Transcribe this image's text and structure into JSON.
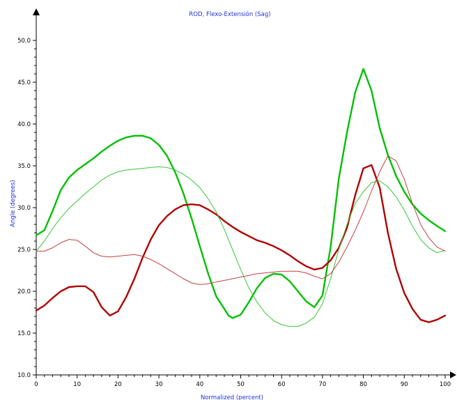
{
  "chart_data": {
    "type": "line",
    "title": "ROD, Flexo-Extensión (Sag)",
    "xlabel": "Normalized (percent)",
    "ylabel": "Angle (degrees)",
    "xlim": [
      0,
      100
    ],
    "ylim": [
      10,
      50
    ],
    "x_ticks": [
      "0",
      "10",
      "20",
      "30",
      "40",
      "50",
      "60",
      "70",
      "80",
      "90",
      "100"
    ],
    "y_ticks": [
      "10.0",
      "15.0",
      "20.0",
      "25.0",
      "30.0",
      "35.0",
      "40.0",
      "45.0",
      "50.0"
    ],
    "grid": false,
    "series": [
      {
        "color": "#00c000",
        "width": 2.4,
        "points": [
          [
            0,
            26.7
          ],
          [
            2,
            27.3
          ],
          [
            4,
            29.6
          ],
          [
            6,
            32.1
          ],
          [
            8,
            33.6
          ],
          [
            10,
            34.5
          ],
          [
            12,
            35.2
          ],
          [
            14,
            35.9
          ],
          [
            16,
            36.7
          ],
          [
            18,
            37.4
          ],
          [
            20,
            38.0
          ],
          [
            22,
            38.4
          ],
          [
            24,
            38.6
          ],
          [
            26,
            38.6
          ],
          [
            28,
            38.3
          ],
          [
            30,
            37.5
          ],
          [
            32,
            36.2
          ],
          [
            34,
            34.2
          ],
          [
            36,
            31.7
          ],
          [
            38,
            28.7
          ],
          [
            40,
            25.4
          ],
          [
            42,
            22.2
          ],
          [
            44,
            19.4
          ],
          [
            46,
            17.9
          ],
          [
            47,
            17.1
          ],
          [
            48,
            16.8
          ],
          [
            50,
            17.2
          ],
          [
            52,
            18.7
          ],
          [
            54,
            20.4
          ],
          [
            56,
            21.6
          ],
          [
            58,
            22.1
          ],
          [
            60,
            22.0
          ],
          [
            62,
            21.2
          ],
          [
            64,
            20.0
          ],
          [
            66,
            18.8
          ],
          [
            68,
            18.1
          ],
          [
            70,
            19.5
          ],
          [
            72,
            25.3
          ],
          [
            74,
            33.5
          ],
          [
            76,
            39.0
          ],
          [
            78,
            43.8
          ],
          [
            80,
            46.6
          ],
          [
            82,
            44.0
          ],
          [
            84,
            39.5
          ],
          [
            86,
            36.3
          ],
          [
            88,
            33.8
          ],
          [
            90,
            31.9
          ],
          [
            92,
            30.4
          ],
          [
            94,
            29.3
          ],
          [
            96,
            28.5
          ],
          [
            98,
            27.8
          ],
          [
            100,
            27.2
          ]
        ]
      },
      {
        "color": "#b00000",
        "width": 2.4,
        "points": [
          [
            0,
            17.7
          ],
          [
            2,
            18.3
          ],
          [
            4,
            19.2
          ],
          [
            6,
            20.0
          ],
          [
            8,
            20.5
          ],
          [
            10,
            20.6
          ],
          [
            12,
            20.6
          ],
          [
            14,
            19.9
          ],
          [
            16,
            18.1
          ],
          [
            18,
            17.1
          ],
          [
            20,
            17.6
          ],
          [
            22,
            19.3
          ],
          [
            24,
            21.5
          ],
          [
            26,
            24.0
          ],
          [
            28,
            26.2
          ],
          [
            30,
            27.9
          ],
          [
            32,
            29.0
          ],
          [
            34,
            29.8
          ],
          [
            36,
            30.3
          ],
          [
            38,
            30.4
          ],
          [
            40,
            30.3
          ],
          [
            42,
            29.8
          ],
          [
            44,
            29.2
          ],
          [
            46,
            28.4
          ],
          [
            48,
            27.7
          ],
          [
            50,
            27.1
          ],
          [
            52,
            26.6
          ],
          [
            54,
            26.1
          ],
          [
            56,
            25.8
          ],
          [
            58,
            25.4
          ],
          [
            60,
            24.9
          ],
          [
            62,
            24.3
          ],
          [
            64,
            23.6
          ],
          [
            66,
            23.0
          ],
          [
            68,
            22.6
          ],
          [
            70,
            22.8
          ],
          [
            72,
            23.7
          ],
          [
            74,
            25.2
          ],
          [
            76,
            27.6
          ],
          [
            78,
            31.5
          ],
          [
            80,
            34.7
          ],
          [
            82,
            35.1
          ],
          [
            84,
            32.4
          ],
          [
            86,
            27.0
          ],
          [
            88,
            22.7
          ],
          [
            90,
            19.8
          ],
          [
            92,
            17.9
          ],
          [
            94,
            16.6
          ],
          [
            96,
            16.3
          ],
          [
            98,
            16.6
          ],
          [
            100,
            17.1
          ]
        ]
      },
      {
        "color": "#35c935",
        "width": 1.0,
        "points": [
          [
            0,
            24.8
          ],
          [
            2,
            26.0
          ],
          [
            4,
            27.5
          ],
          [
            6,
            28.8
          ],
          [
            8,
            29.9
          ],
          [
            10,
            30.8
          ],
          [
            12,
            31.7
          ],
          [
            14,
            32.5
          ],
          [
            16,
            33.3
          ],
          [
            18,
            33.9
          ],
          [
            20,
            34.3
          ],
          [
            22,
            34.5
          ],
          [
            24,
            34.6
          ],
          [
            26,
            34.7
          ],
          [
            28,
            34.8
          ],
          [
            30,
            34.9
          ],
          [
            32,
            34.8
          ],
          [
            34,
            34.5
          ],
          [
            36,
            34.0
          ],
          [
            38,
            33.3
          ],
          [
            40,
            32.4
          ],
          [
            42,
            31.1
          ],
          [
            44,
            29.5
          ],
          [
            46,
            27.4
          ],
          [
            48,
            25.0
          ],
          [
            50,
            22.6
          ],
          [
            52,
            20.4
          ],
          [
            54,
            18.7
          ],
          [
            56,
            17.4
          ],
          [
            58,
            16.5
          ],
          [
            60,
            16.0
          ],
          [
            62,
            15.8
          ],
          [
            64,
            15.8
          ],
          [
            66,
            16.2
          ],
          [
            68,
            16.9
          ],
          [
            70,
            18.5
          ],
          [
            72,
            21.5
          ],
          [
            74,
            25.0
          ],
          [
            76,
            28.0
          ],
          [
            78,
            30.5
          ],
          [
            80,
            31.9
          ],
          [
            82,
            33.0
          ],
          [
            84,
            33.2
          ],
          [
            86,
            32.5
          ],
          [
            88,
            31.3
          ],
          [
            90,
            29.7
          ],
          [
            92,
            27.8
          ],
          [
            94,
            26.2
          ],
          [
            96,
            25.2
          ],
          [
            98,
            24.6
          ],
          [
            100,
            24.9
          ]
        ]
      },
      {
        "color": "#c04040",
        "width": 1.0,
        "points": [
          [
            0,
            24.8
          ],
          [
            2,
            24.8
          ],
          [
            4,
            25.2
          ],
          [
            6,
            25.8
          ],
          [
            8,
            26.2
          ],
          [
            10,
            26.1
          ],
          [
            12,
            25.4
          ],
          [
            14,
            24.6
          ],
          [
            16,
            24.2
          ],
          [
            18,
            24.1
          ],
          [
            20,
            24.2
          ],
          [
            22,
            24.3
          ],
          [
            24,
            24.4
          ],
          [
            26,
            24.2
          ],
          [
            28,
            23.8
          ],
          [
            30,
            23.3
          ],
          [
            32,
            22.7
          ],
          [
            34,
            22.1
          ],
          [
            36,
            21.5
          ],
          [
            38,
            21.0
          ],
          [
            40,
            20.8
          ],
          [
            42,
            20.9
          ],
          [
            44,
            21.1
          ],
          [
            46,
            21.3
          ],
          [
            48,
            21.5
          ],
          [
            50,
            21.7
          ],
          [
            52,
            21.9
          ],
          [
            54,
            22.1
          ],
          [
            56,
            22.2
          ],
          [
            58,
            22.3
          ],
          [
            60,
            22.4
          ],
          [
            62,
            22.4
          ],
          [
            64,
            22.4
          ],
          [
            66,
            22.2
          ],
          [
            68,
            21.8
          ],
          [
            70,
            21.5
          ],
          [
            72,
            22.1
          ],
          [
            74,
            23.5
          ],
          [
            76,
            25.3
          ],
          [
            78,
            27.3
          ],
          [
            80,
            29.5
          ],
          [
            82,
            32.0
          ],
          [
            84,
            34.3
          ],
          [
            86,
            36.2
          ],
          [
            88,
            35.6
          ],
          [
            90,
            33.4
          ],
          [
            92,
            30.5
          ],
          [
            94,
            28.0
          ],
          [
            96,
            26.4
          ],
          [
            98,
            25.3
          ],
          [
            100,
            24.8
          ]
        ]
      }
    ]
  }
}
